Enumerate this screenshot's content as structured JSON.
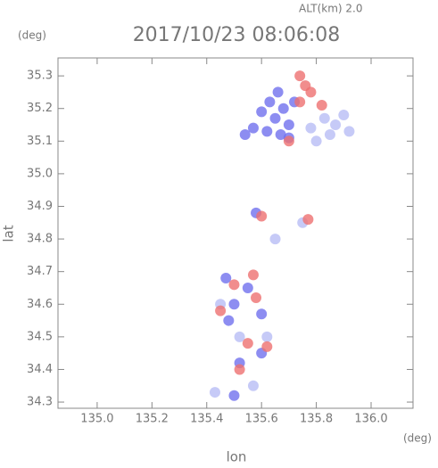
{
  "chart_data": {
    "type": "scatter",
    "title": "2017/10/23 08:06:08",
    "annotation": "ALT(km)  2.0",
    "ylabel": "lat",
    "ylabel_unit": "(deg)",
    "xlabel": "lon",
    "xlabel_unit": "(deg)",
    "xlim": [
      134.857,
      136.153
    ],
    "ylim": [
      34.281,
      35.355
    ],
    "xticks": [
      {
        "value": 135.0,
        "label": "135.0"
      },
      135.2,
      135.4,
      135.6,
      135.8,
      {
        "value": 136.0,
        "label": "136.0"
      }
    ],
    "yticks": [
      34.3,
      34.4,
      34.5,
      34.6,
      34.7,
      34.8,
      34.9,
      {
        "value": 35.0,
        "label": "35.0"
      },
      35.1,
      35.2,
      35.3
    ],
    "series": [
      {
        "color": "#7070ee",
        "x": [
          135.63,
          135.66,
          135.68,
          135.65,
          135.62,
          135.7,
          135.72,
          135.6,
          135.57,
          135.54,
          135.67,
          135.7,
          135.5,
          135.48,
          135.55,
          135.6,
          135.52,
          135.47,
          135.58,
          135.5,
          135.6
        ],
        "values": [
          35.22,
          35.25,
          35.2,
          35.17,
          35.13,
          35.15,
          35.22,
          35.19,
          35.14,
          35.12,
          35.12,
          35.11,
          34.6,
          34.55,
          34.65,
          34.57,
          34.42,
          34.68,
          34.88,
          34.32,
          34.45
        ]
      },
      {
        "color": "#b8bdf5",
        "x": [
          135.83,
          135.87,
          135.9,
          135.85,
          135.8,
          135.78,
          135.92,
          135.52,
          135.45,
          135.57,
          135.43,
          135.62,
          135.65,
          135.75
        ],
        "values": [
          35.17,
          35.15,
          35.18,
          35.12,
          35.1,
          35.14,
          35.13,
          34.5,
          34.6,
          34.35,
          34.33,
          34.5,
          34.8,
          34.85
        ]
      },
      {
        "color": "#ee7070",
        "x": [
          135.74,
          135.76,
          135.74,
          135.78,
          135.82,
          135.7,
          135.6,
          135.5,
          135.58,
          135.55,
          135.62,
          135.52,
          135.57,
          135.45,
          135.77
        ],
        "values": [
          35.3,
          35.27,
          35.22,
          35.25,
          35.21,
          35.1,
          34.87,
          34.66,
          34.62,
          34.48,
          34.47,
          34.4,
          34.69,
          34.58,
          34.86
        ]
      }
    ]
  }
}
